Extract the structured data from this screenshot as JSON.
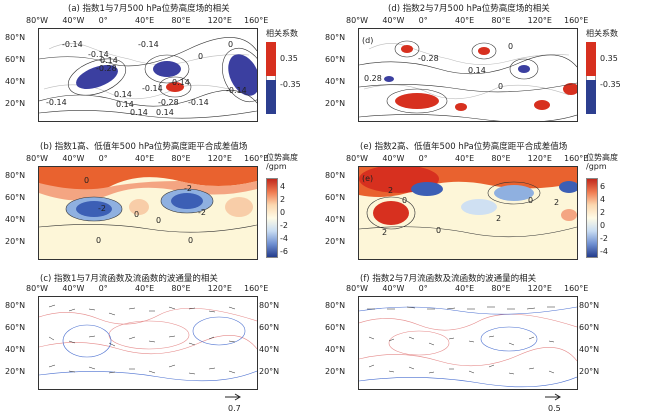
{
  "panels": {
    "a": {
      "title": "(a) 指数1与7月500 hPa位势高度场的相关"
    },
    "b": {
      "title": "(b) 指数1高、低值年500 hPa位势高度距平合成差值场"
    },
    "c": {
      "title": "(c) 指数1与7月流函数及流函数的波通量的相关"
    },
    "d": {
      "title": "(d) 指数2与7月500 hPa位势高度场的相关"
    },
    "e": {
      "title": "(e) 指数2高、低值年500 hPa位势高度距平合成差值场"
    },
    "f": {
      "title": "(f) 指数2与7月流函数及流函数的波通量的相关"
    }
  },
  "axes": {
    "x_ticks": [
      "80°W",
      "40°W",
      "0°",
      "40°E",
      "80°E",
      "120°E",
      "160°E"
    ],
    "y_ticks": [
      "80°N",
      "60°N",
      "40°N",
      "20°N"
    ]
  },
  "colorbars": {
    "corr": {
      "title": "相关系数",
      "labels": [
        "0.35",
        "-0.35"
      ]
    },
    "height_b": {
      "title": "位势高度",
      "unit": "/gpm",
      "labels": [
        "4",
        "2",
        "0",
        "-2",
        "-4",
        "-6"
      ]
    },
    "height_e": {
      "title": "位势高度",
      "unit": "/gpm",
      "labels": [
        "6",
        "4",
        "2",
        "0",
        "-2",
        "-4"
      ]
    }
  },
  "reference_vectors": {
    "c": "0.7",
    "f": "0.5"
  },
  "contour_labels": {
    "a": [
      "-0.14",
      "-0.14",
      "0.14",
      "-0.28",
      "-0.14",
      "-0.14",
      "0.14",
      "-0.28",
      "0.14",
      "0",
      "-0.14",
      "0.14",
      "-0.14",
      "0.14",
      "0.14",
      "-0.14",
      "0"
    ],
    "b": [
      "0",
      "-2",
      "-2",
      "0",
      "-2",
      "0",
      "0",
      "0"
    ],
    "d": [
      "(d)",
      "-0.28",
      "0",
      "0.28",
      "0.14",
      "0"
    ],
    "e": [
      "(e)",
      "2",
      "0",
      "2",
      "0",
      "2",
      "0",
      "2"
    ]
  },
  "colors": {
    "red_strong": "#d7301f",
    "red_mid": "#f4a582",
    "blue_strong": "#2c3e8f",
    "blue_mid": "#6f8fd1"
  }
}
